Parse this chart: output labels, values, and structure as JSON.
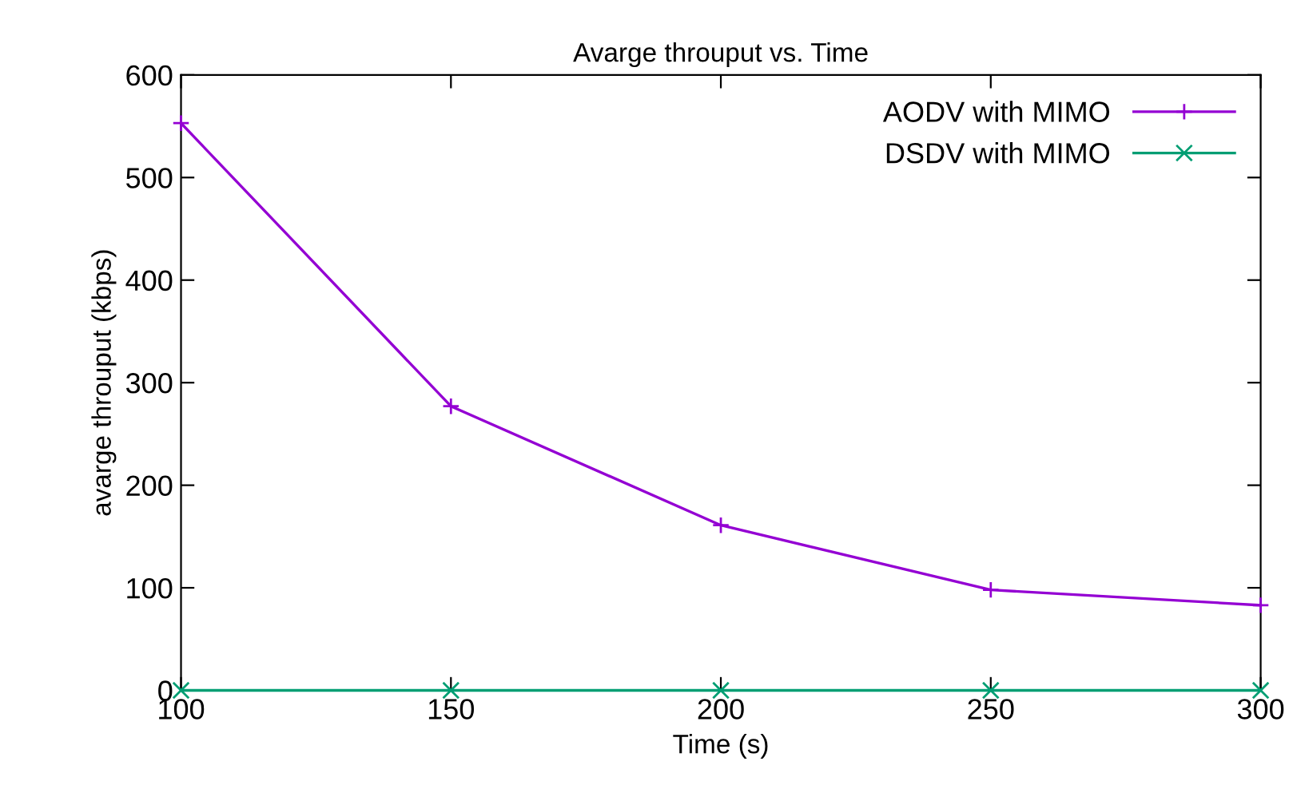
{
  "chart_data": {
    "type": "line",
    "title": "Avarge throuput vs. Time",
    "xlabel": "Time (s)",
    "ylabel": "avarge throuput (kbps)",
    "x": [
      100,
      150,
      200,
      250,
      300
    ],
    "series": [
      {
        "name": "AODV with MIMO",
        "color": "#9400d3",
        "marker": "plus",
        "values": [
          553,
          277,
          161,
          98,
          83
        ]
      },
      {
        "name": "DSDV with MIMO",
        "color": "#009e73",
        "marker": "cross",
        "values": [
          0,
          0,
          0,
          0,
          0
        ]
      }
    ],
    "xlim": [
      100,
      300
    ],
    "xticks": [
      100,
      150,
      200,
      250,
      300
    ],
    "ylim": [
      0,
      600
    ],
    "yticks": [
      0,
      100,
      200,
      300,
      400,
      500,
      600
    ],
    "grid": false,
    "legend": "top right",
    "line_style": "solid"
  }
}
